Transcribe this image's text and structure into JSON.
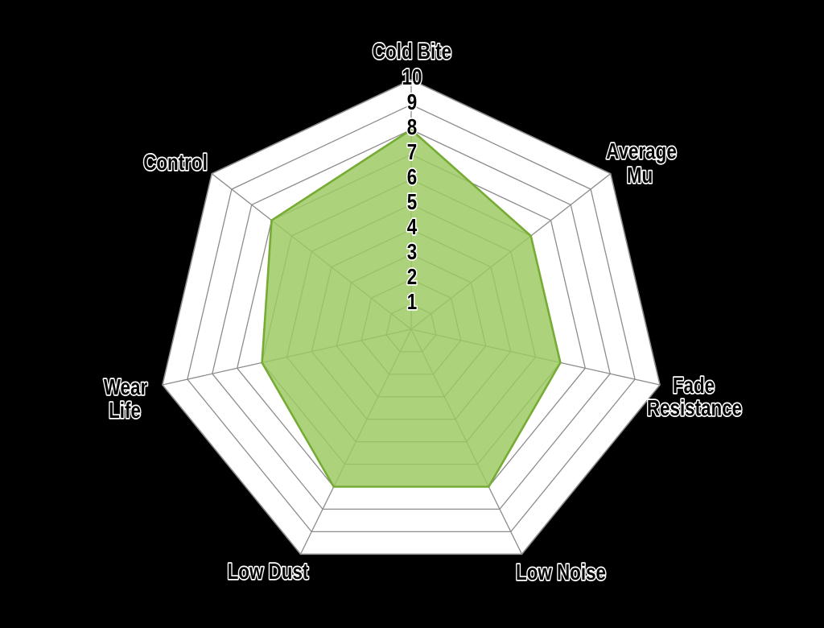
{
  "chart_data": {
    "type": "radar",
    "title": "",
    "categories": [
      "Cold Bite",
      "Average Mu",
      "Fade Resistance",
      "Low Noise",
      "Low Dust",
      "Wear Life",
      "Control"
    ],
    "category_label_lines": [
      [
        "Cold Bite"
      ],
      [
        "Average",
        "Mu"
      ],
      [
        "Fade",
        "Resistance"
      ],
      [
        "Low Noise"
      ],
      [
        "Low Dust"
      ],
      [
        "Wear",
        "Life"
      ],
      [
        "Control"
      ]
    ],
    "values": [
      8,
      6,
      6,
      7,
      7,
      6,
      7
    ],
    "axis_range": [
      0,
      10
    ],
    "ring_count": 10,
    "tick_labels": [
      "1",
      "2",
      "3",
      "4",
      "5",
      "6",
      "7",
      "8",
      "9",
      "10"
    ],
    "grid": true,
    "legend": "none",
    "colors": {
      "background": "#000000",
      "plot_fill": "#FFFFFF",
      "grid_line": "#8C8C8C",
      "series_fill": "#9CCB62",
      "series_stroke": "#76AB34",
      "label_fill": "#000000",
      "label_outline": "#FFFFFF"
    }
  }
}
